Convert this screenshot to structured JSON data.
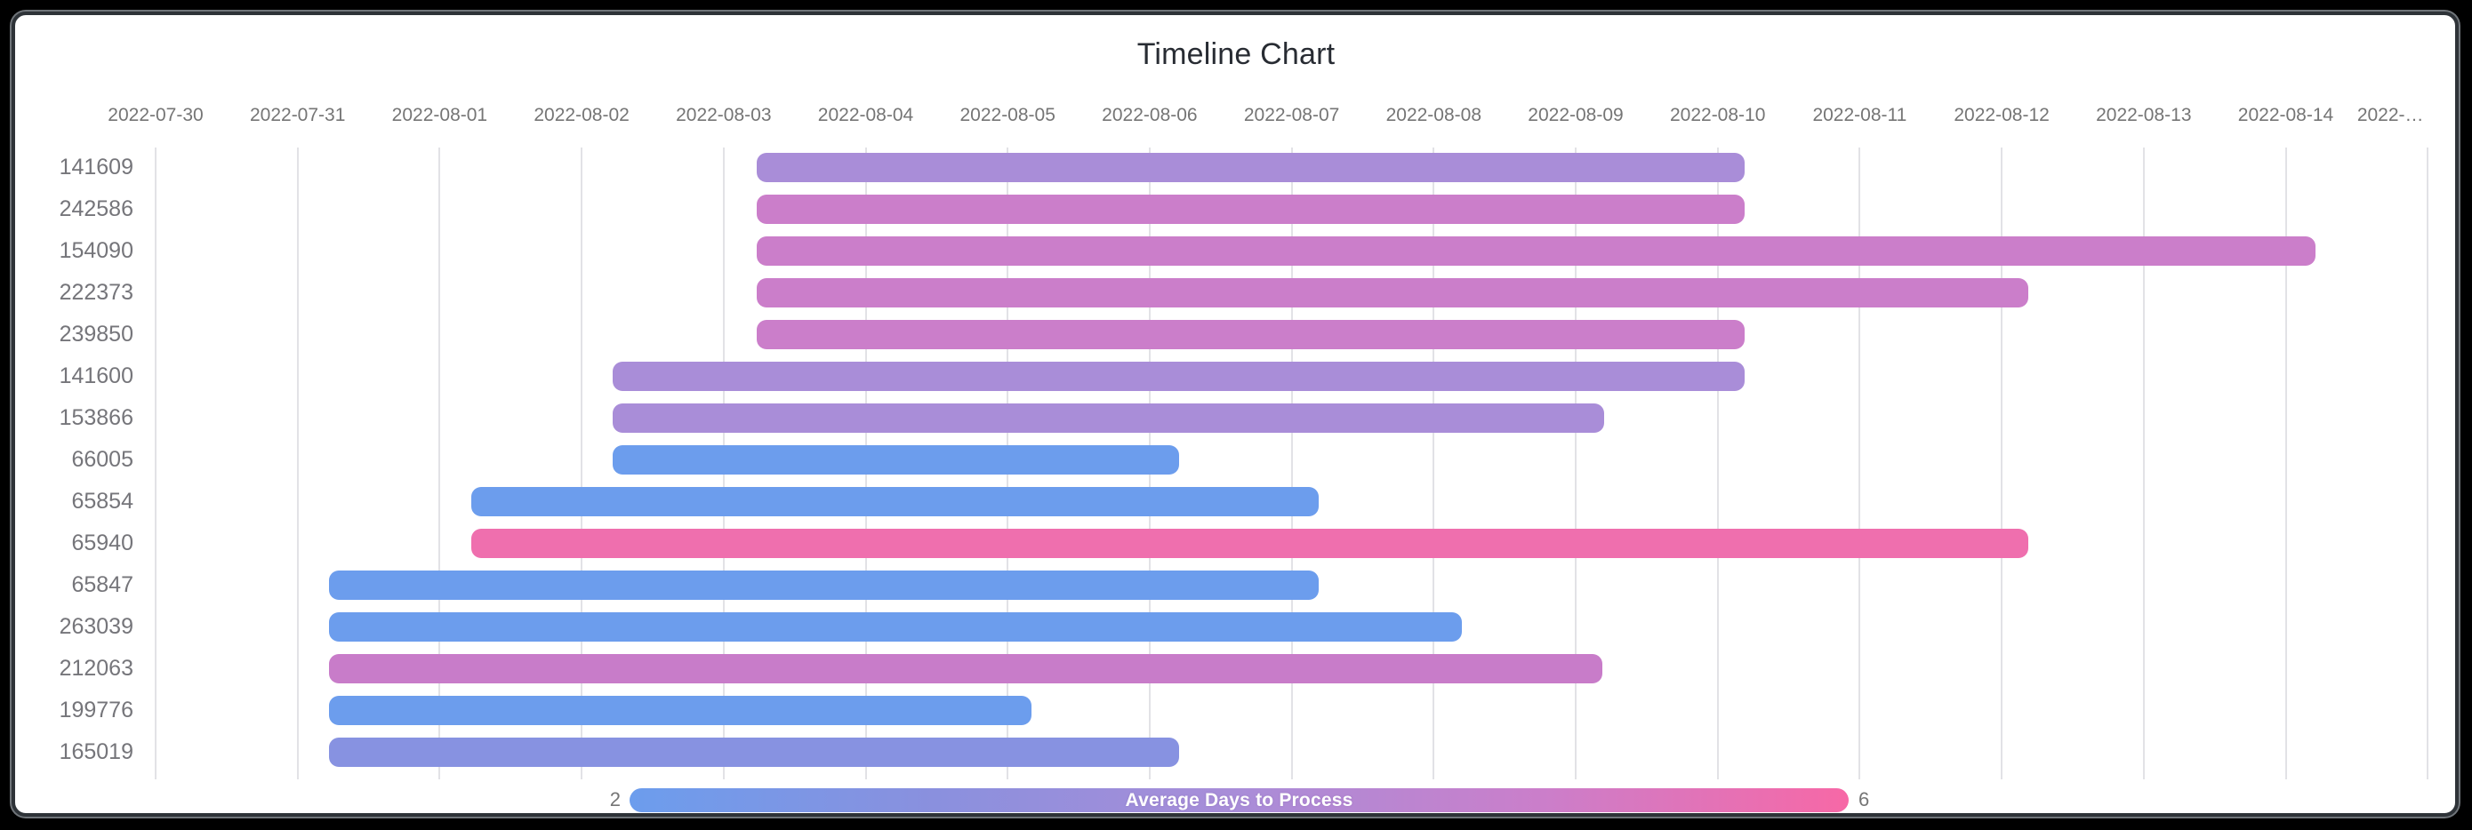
{
  "window": {
    "background": "#000000",
    "card_background": "#ffffff",
    "frame_border_color": "#2e3338",
    "frame_rim_color": "#70757a"
  },
  "chart_data": {
    "type": "gantt",
    "title": "Timeline Chart",
    "title_color": "#282c33",
    "grid": true,
    "legend_position": "bottom",
    "axis_tick_color": "#757575",
    "row_label_color": "#75757a",
    "gridline_color": "#e2e2e6",
    "x_ticks": [
      "2022-07-30",
      "2022-07-31",
      "2022-08-01",
      "2022-08-02",
      "2022-08-03",
      "2022-08-04",
      "2022-08-05",
      "2022-08-06",
      "2022-08-07",
      "2022-08-08",
      "2022-08-09",
      "2022-08-10",
      "2022-08-11",
      "2022-08-12",
      "2022-08-13",
      "2022-08-14",
      "2022-…"
    ],
    "rows": [
      {
        "id": "141609",
        "start": "2022-08-03",
        "end": "2022-08-10",
        "start_day": 4.23,
        "end_day": 11.19,
        "color": "#a98dd8"
      },
      {
        "id": "242586",
        "start": "2022-08-03",
        "end": "2022-08-10",
        "start_day": 4.23,
        "end_day": 11.19,
        "color": "#cb7eca"
      },
      {
        "id": "154090",
        "start": "2022-08-03",
        "end": "2022-08-14",
        "start_day": 4.23,
        "end_day": 15.21,
        "color": "#cb7eca"
      },
      {
        "id": "222373",
        "start": "2022-08-03",
        "end": "2022-08-12",
        "start_day": 4.23,
        "end_day": 13.19,
        "color": "#cb7eca"
      },
      {
        "id": "239850",
        "start": "2022-08-03",
        "end": "2022-08-10",
        "start_day": 4.23,
        "end_day": 11.19,
        "color": "#cb7eca"
      },
      {
        "id": "141600",
        "start": "2022-08-02",
        "end": "2022-08-10",
        "start_day": 3.22,
        "end_day": 11.19,
        "color": "#a98dd8"
      },
      {
        "id": "153866",
        "start": "2022-08-02",
        "end": "2022-08-09",
        "start_day": 3.22,
        "end_day": 10.2,
        "color": "#a98dd8"
      },
      {
        "id": "66005",
        "start": "2022-08-02",
        "end": "2022-08-06",
        "start_day": 3.22,
        "end_day": 7.21,
        "color": "#6c9ded"
      },
      {
        "id": "65854",
        "start": "2022-08-01",
        "end": "2022-08-07",
        "start_day": 2.22,
        "end_day": 8.19,
        "color": "#6c9ded"
      },
      {
        "id": "65940",
        "start": "2022-08-01",
        "end": "2022-08-12",
        "start_day": 2.22,
        "end_day": 13.19,
        "color": "#ef6fae"
      },
      {
        "id": "65847",
        "start": "2022-07-31",
        "end": "2022-08-07",
        "start_day": 1.22,
        "end_day": 8.19,
        "color": "#6c9ded"
      },
      {
        "id": "263039",
        "start": "2022-07-31",
        "end": "2022-08-08",
        "start_day": 1.22,
        "end_day": 9.2,
        "color": "#6c9ded"
      },
      {
        "id": "212063",
        "start": "2022-07-31",
        "end": "2022-08-09",
        "start_day": 1.22,
        "end_day": 10.19,
        "color": "#c87cc9"
      },
      {
        "id": "199776",
        "start": "2022-07-31",
        "end": "2022-08-05",
        "start_day": 1.22,
        "end_day": 6.17,
        "color": "#6c9ded"
      },
      {
        "id": "165019",
        "start": "2022-07-31",
        "end": "2022-08-06",
        "start_day": 1.22,
        "end_day": 7.21,
        "color": "#8792e1"
      }
    ],
    "colorbar": {
      "label": "Average Days to Process",
      "min": "2",
      "max": "6",
      "gradient": [
        "#6c9ded",
        "#8a90de",
        "#a98dd8",
        "#cb7eca",
        "#f768a6"
      ],
      "label_color": "#ffffff",
      "tick_color": "#757575"
    }
  }
}
